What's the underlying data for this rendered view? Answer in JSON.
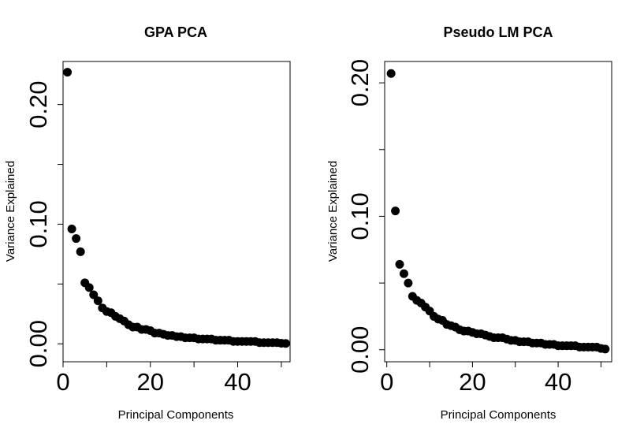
{
  "chart_data": [
    {
      "type": "scatter",
      "title": "GPA PCA",
      "xlabel": "Principal Components",
      "ylabel": "Variance Explained",
      "xlim": [
        0,
        52
      ],
      "ylim": [
        -0.015,
        0.236
      ],
      "xticks": [
        0,
        10,
        20,
        30,
        40,
        50
      ],
      "xtick_labels": [
        "0",
        "",
        "20",
        "",
        "40",
        ""
      ],
      "yticks": [
        0.0,
        0.05,
        0.1,
        0.15,
        0.2
      ],
      "ytick_labels": [
        "0.00",
        "",
        "0.10",
        "",
        "0.20"
      ],
      "grid": false,
      "series": [
        {
          "x": [
            1,
            2,
            3,
            4,
            5,
            6,
            7,
            8,
            9,
            10,
            11,
            12,
            13,
            14,
            15,
            16,
            17,
            18,
            19,
            20,
            21,
            22,
            23,
            24,
            25,
            26,
            27,
            28,
            29,
            30,
            31,
            32,
            33,
            34,
            35,
            36,
            37,
            38,
            39,
            40,
            41,
            42,
            43,
            44,
            45,
            46,
            47,
            48,
            49,
            50,
            51
          ],
          "values": [
            0.227,
            0.096,
            0.088,
            0.077,
            0.051,
            0.047,
            0.041,
            0.036,
            0.03,
            0.027,
            0.026,
            0.023,
            0.021,
            0.019,
            0.016,
            0.014,
            0.014,
            0.012,
            0.012,
            0.011,
            0.009,
            0.009,
            0.008,
            0.007,
            0.007,
            0.006,
            0.006,
            0.005,
            0.005,
            0.005,
            0.004,
            0.004,
            0.004,
            0.004,
            0.003,
            0.003,
            0.003,
            0.003,
            0.002,
            0.002,
            0.002,
            0.002,
            0.002,
            0.002,
            0.001,
            0.001,
            0.001,
            0.001,
            0.001,
            0.0005,
            0.0003
          ]
        }
      ]
    },
    {
      "type": "scatter",
      "title": "Pseudo LM PCA",
      "xlabel": "Principal Components",
      "ylabel": "Variance Explained",
      "xlim": [
        -0.5,
        52.5
      ],
      "ylim": [
        -0.009,
        0.216
      ],
      "xticks": [
        0,
        10,
        20,
        30,
        40,
        50
      ],
      "xtick_labels": [
        "0",
        "",
        "20",
        "",
        "40",
        ""
      ],
      "yticks": [
        0.0,
        0.05,
        0.1,
        0.15,
        0.2
      ],
      "ytick_labels": [
        "0.00",
        "",
        "0.10",
        "",
        "0.20"
      ],
      "grid": false,
      "series": [
        {
          "x": [
            1,
            2,
            3,
            4,
            5,
            6,
            7,
            8,
            9,
            10,
            11,
            12,
            13,
            14,
            15,
            16,
            17,
            18,
            19,
            20,
            21,
            22,
            23,
            24,
            25,
            26,
            27,
            28,
            29,
            30,
            31,
            32,
            33,
            34,
            35,
            36,
            37,
            38,
            39,
            40,
            41,
            42,
            43,
            44,
            45,
            46,
            47,
            48,
            49,
            50,
            51
          ],
          "values": [
            0.207,
            0.104,
            0.064,
            0.057,
            0.05,
            0.04,
            0.037,
            0.035,
            0.032,
            0.029,
            0.025,
            0.023,
            0.022,
            0.019,
            0.018,
            0.017,
            0.015,
            0.014,
            0.014,
            0.013,
            0.012,
            0.012,
            0.011,
            0.01,
            0.009,
            0.009,
            0.009,
            0.008,
            0.007,
            0.007,
            0.006,
            0.006,
            0.006,
            0.005,
            0.005,
            0.005,
            0.004,
            0.004,
            0.004,
            0.003,
            0.003,
            0.003,
            0.003,
            0.003,
            0.002,
            0.002,
            0.002,
            0.002,
            0.002,
            0.001,
            0.0005
          ]
        }
      ]
    }
  ]
}
